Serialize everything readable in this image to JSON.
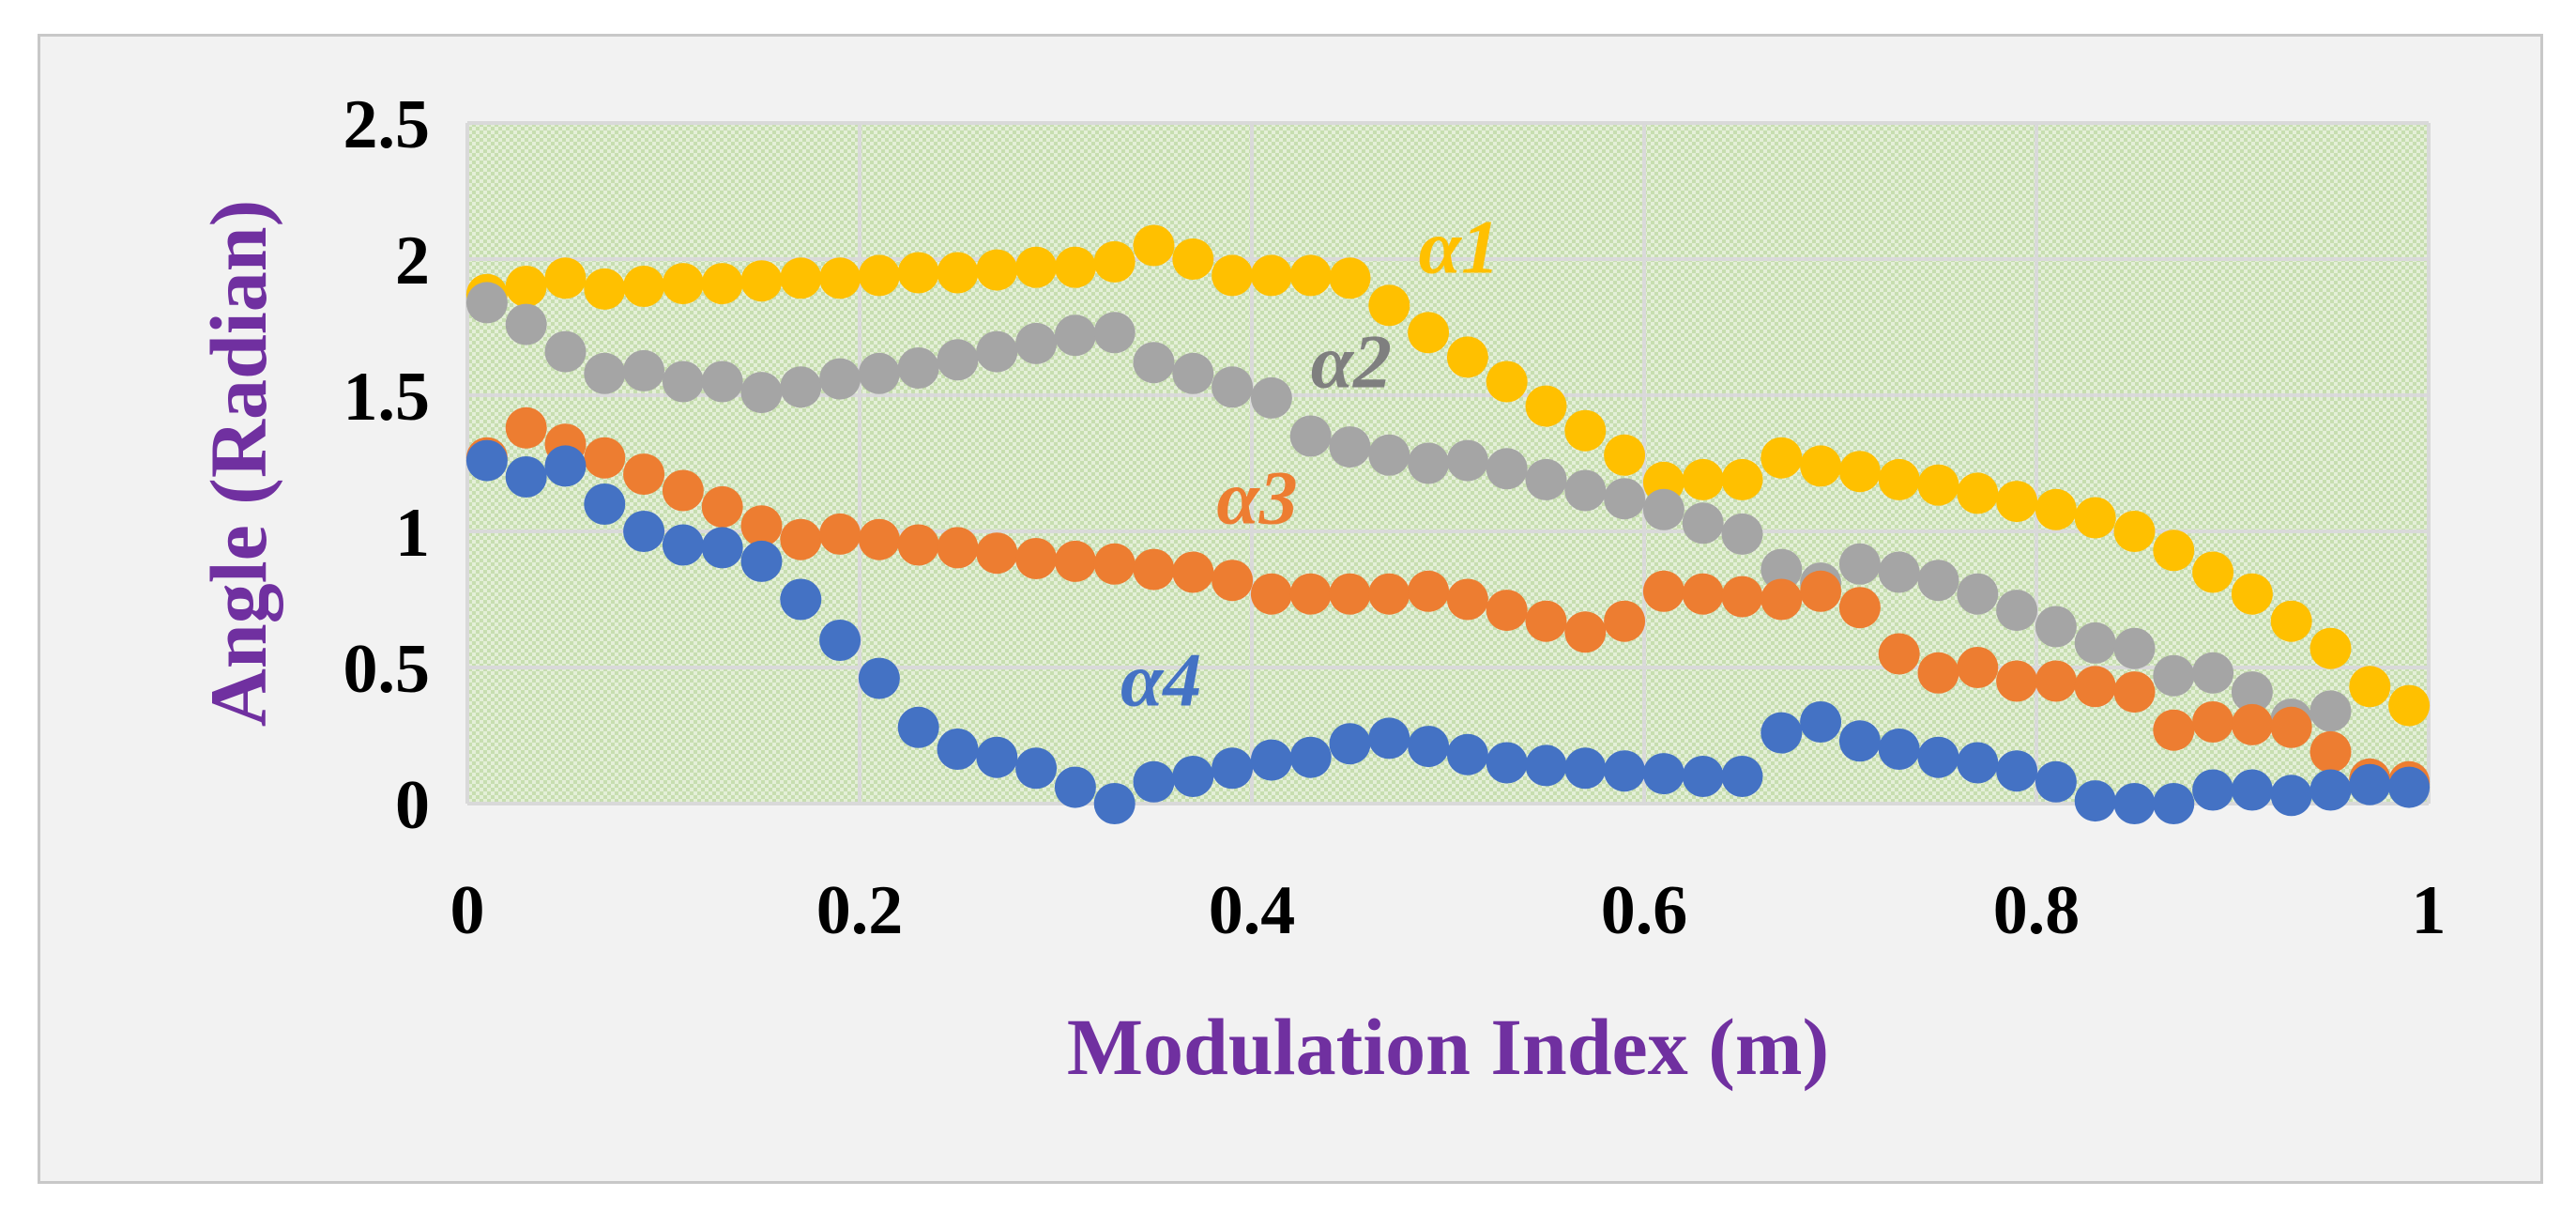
{
  "chart_data": {
    "type": "scatter",
    "title": "",
    "xlabel": "Modulation Index (m)",
    "ylabel": "Angle (Radian)",
    "xlim": [
      0,
      1
    ],
    "ylim": [
      0,
      2.5
    ],
    "xticks": [
      "0",
      "0.2",
      "0.4",
      "0.6",
      "0.8",
      "1"
    ],
    "yticks": [
      "0",
      "0.5",
      "1",
      "1.5",
      "2",
      "2.5"
    ],
    "grid": true,
    "legend": "inline labels next to series",
    "x": [
      0.01,
      0.03,
      0.05,
      0.07,
      0.09,
      0.11,
      0.13,
      0.15,
      0.17,
      0.19,
      0.21,
      0.23,
      0.25,
      0.27,
      0.29,
      0.31,
      0.33,
      0.35,
      0.37,
      0.39,
      0.41,
      0.43,
      0.45,
      0.47,
      0.49,
      0.51,
      0.53,
      0.55,
      0.57,
      0.59,
      0.61,
      0.63,
      0.65,
      0.67,
      0.69,
      0.71,
      0.73,
      0.75,
      0.77,
      0.79,
      0.81,
      0.83,
      0.85,
      0.87,
      0.89,
      0.91,
      0.93,
      0.95,
      0.97,
      0.99
    ],
    "series": [
      {
        "name": "α1",
        "color": "#ffc000",
        "values": [
          1.87,
          1.9,
          1.93,
          1.89,
          1.9,
          1.91,
          1.91,
          1.92,
          1.93,
          1.93,
          1.94,
          1.95,
          1.95,
          1.96,
          1.97,
          1.97,
          1.99,
          2.05,
          2.0,
          1.94,
          1.94,
          1.94,
          1.93,
          1.83,
          1.73,
          1.64,
          1.55,
          1.46,
          1.37,
          1.28,
          1.18,
          1.19,
          1.19,
          1.27,
          1.24,
          1.22,
          1.19,
          1.17,
          1.14,
          1.11,
          1.08,
          1.05,
          1.0,
          0.93,
          0.85,
          0.77,
          0.67,
          0.57,
          0.43,
          0.36
        ]
      },
      {
        "name": "α2",
        "color": "#a5a5a5",
        "values": [
          1.84,
          1.76,
          1.66,
          1.58,
          1.59,
          1.55,
          1.55,
          1.51,
          1.53,
          1.56,
          1.58,
          1.6,
          1.63,
          1.66,
          1.69,
          1.72,
          1.73,
          1.62,
          1.58,
          1.53,
          1.49,
          1.35,
          1.31,
          1.28,
          1.25,
          1.26,
          1.23,
          1.19,
          1.15,
          1.12,
          1.08,
          1.03,
          0.99,
          0.86,
          0.81,
          0.88,
          0.85,
          0.82,
          0.77,
          0.71,
          0.65,
          0.59,
          0.57,
          0.47,
          0.48,
          0.41,
          0.31,
          0.34,
          0.09,
          0.07
        ]
      },
      {
        "name": "α3",
        "color": "#ed7d31",
        "values": [
          1.27,
          1.38,
          1.32,
          1.27,
          1.21,
          1.15,
          1.09,
          1.02,
          0.97,
          0.99,
          0.97,
          0.95,
          0.94,
          0.92,
          0.9,
          0.89,
          0.88,
          0.86,
          0.85,
          0.82,
          0.77,
          0.77,
          0.77,
          0.77,
          0.78,
          0.75,
          0.71,
          0.67,
          0.63,
          0.67,
          0.78,
          0.77,
          0.76,
          0.75,
          0.78,
          0.72,
          0.55,
          0.48,
          0.5,
          0.45,
          0.45,
          0.43,
          0.41,
          0.27,
          0.3,
          0.29,
          0.28,
          0.19,
          0.09,
          0.08
        ]
      },
      {
        "name": "α4",
        "color": "#4472c4",
        "values": [
          1.26,
          1.2,
          1.24,
          1.1,
          1.0,
          0.95,
          0.94,
          0.89,
          0.75,
          0.6,
          0.46,
          0.28,
          0.2,
          0.17,
          0.13,
          0.06,
          0.0,
          0.08,
          0.1,
          0.13,
          0.16,
          0.17,
          0.22,
          0.24,
          0.21,
          0.18,
          0.15,
          0.14,
          0.13,
          0.12,
          0.11,
          0.1,
          0.1,
          0.26,
          0.3,
          0.23,
          0.2,
          0.17,
          0.15,
          0.12,
          0.08,
          0.01,
          0.0,
          0.0,
          0.05,
          0.05,
          0.03,
          0.05,
          0.07,
          0.06
        ]
      }
    ],
    "annotations": [
      {
        "text": "α1",
        "x": 0.485,
        "y": 1.95,
        "color": "#ffc000"
      },
      {
        "text": "α2",
        "x": 0.43,
        "y": 1.53,
        "color": "#7f7f7f"
      },
      {
        "text": "α3",
        "x": 0.382,
        "y": 1.03,
        "color": "#ed7d31"
      },
      {
        "text": "α4",
        "x": 0.333,
        "y": 0.36,
        "color": "#4472c4"
      }
    ]
  }
}
